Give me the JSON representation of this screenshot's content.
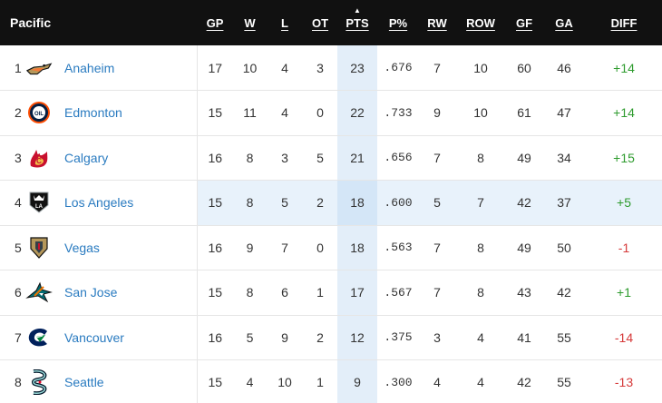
{
  "division": "Pacific",
  "columns": {
    "gp": "GP",
    "w": "W",
    "l": "L",
    "ot": "OT",
    "pts": "PTS",
    "ppct": "P%",
    "rw": "RW",
    "row": "ROW",
    "gf": "GF",
    "ga": "GA",
    "diff": "DIFF"
  },
  "colors": {
    "header_bg": "#111111",
    "team_link": "#2a7bc0",
    "positive": "#2e9b2e",
    "negative": "#d63a3a",
    "highlight_row": "#e8f2fb",
    "pts_column": "#e3eef9"
  },
  "rows": [
    {
      "rank": "1",
      "team": "Anaheim",
      "logo": "anaheim-ducks-logo-icon",
      "gp": "17",
      "w": "10",
      "l": "4",
      "ot": "3",
      "pts": "23",
      "ppct": ".676",
      "rw": "7",
      "row": "10",
      "gf": "60",
      "ga": "46",
      "diff": "+14"
    },
    {
      "rank": "2",
      "team": "Edmonton",
      "logo": "edmonton-oilers-logo-icon",
      "gp": "15",
      "w": "11",
      "l": "4",
      "ot": "0",
      "pts": "22",
      "ppct": ".733",
      "rw": "9",
      "row": "10",
      "gf": "61",
      "ga": "47",
      "diff": "+14"
    },
    {
      "rank": "3",
      "team": "Calgary",
      "logo": "calgary-flames-logo-icon",
      "gp": "16",
      "w": "8",
      "l": "3",
      "ot": "5",
      "pts": "21",
      "ppct": ".656",
      "rw": "7",
      "row": "8",
      "gf": "49",
      "ga": "34",
      "diff": "+15"
    },
    {
      "rank": "4",
      "team": "Los Angeles",
      "logo": "los-angeles-kings-logo-icon",
      "gp": "15",
      "w": "8",
      "l": "5",
      "ot": "2",
      "pts": "18",
      "ppct": ".600",
      "rw": "5",
      "row": "7",
      "gf": "42",
      "ga": "37",
      "diff": "+5"
    },
    {
      "rank": "5",
      "team": "Vegas",
      "logo": "vegas-golden-knights-logo-icon",
      "gp": "16",
      "w": "9",
      "l": "7",
      "ot": "0",
      "pts": "18",
      "ppct": ".563",
      "rw": "7",
      "row": "8",
      "gf": "49",
      "ga": "50",
      "diff": "-1"
    },
    {
      "rank": "6",
      "team": "San Jose",
      "logo": "san-jose-sharks-logo-icon",
      "gp": "15",
      "w": "8",
      "l": "6",
      "ot": "1",
      "pts": "17",
      "ppct": ".567",
      "rw": "7",
      "row": "8",
      "gf": "43",
      "ga": "42",
      "diff": "+1"
    },
    {
      "rank": "7",
      "team": "Vancouver",
      "logo": "vancouver-canucks-logo-icon",
      "gp": "16",
      "w": "5",
      "l": "9",
      "ot": "2",
      "pts": "12",
      "ppct": ".375",
      "rw": "3",
      "row": "4",
      "gf": "41",
      "ga": "55",
      "diff": "-14"
    },
    {
      "rank": "8",
      "team": "Seattle",
      "logo": "seattle-kraken-logo-icon",
      "gp": "15",
      "w": "4",
      "l": "10",
      "ot": "1",
      "pts": "9",
      "ppct": ".300",
      "rw": "4",
      "row": "4",
      "gf": "42",
      "ga": "55",
      "diff": "-13"
    }
  ]
}
